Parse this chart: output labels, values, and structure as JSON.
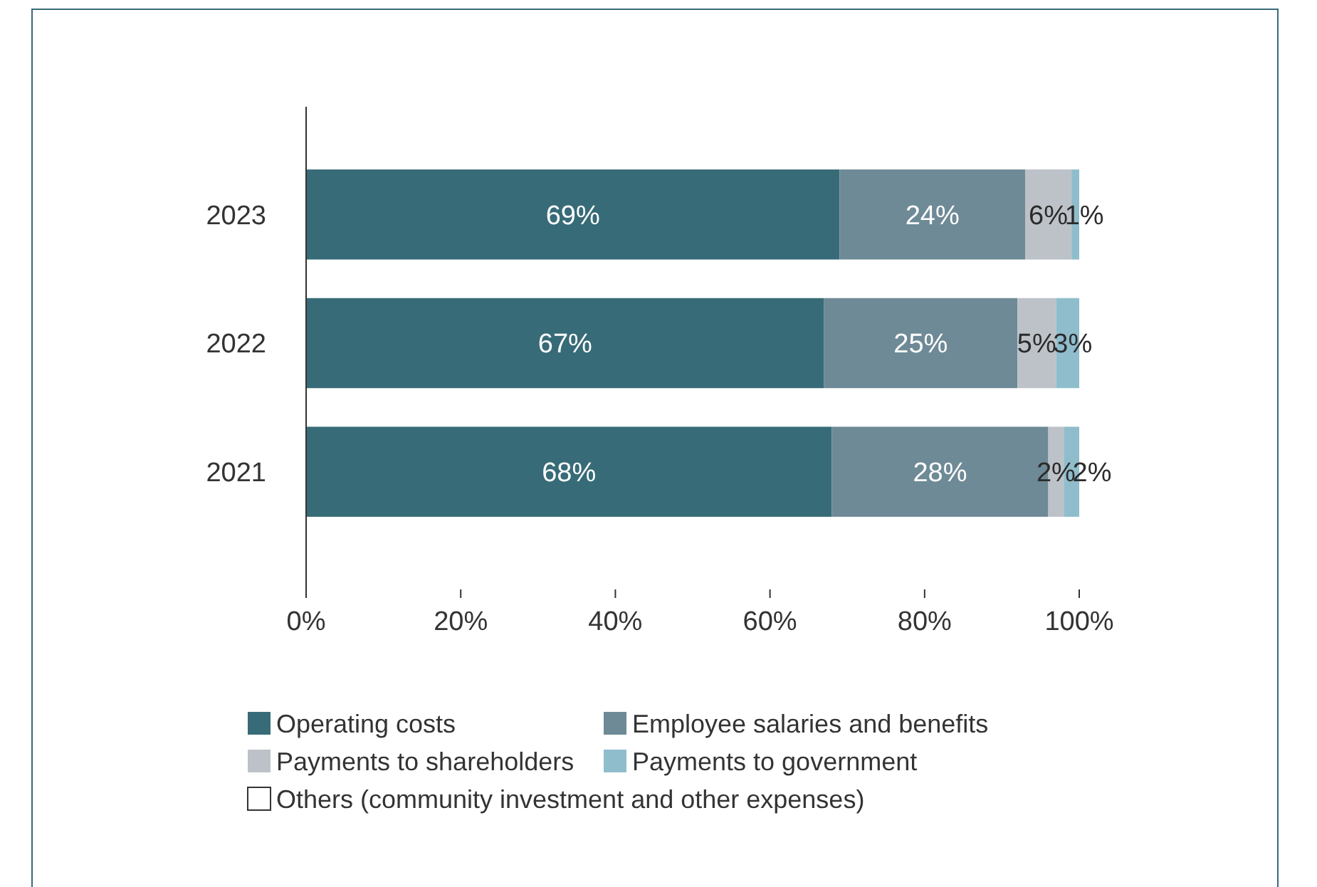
{
  "chart_data": {
    "type": "bar",
    "orientation": "horizontal",
    "stacked": true,
    "categories": [
      "2023",
      "2022",
      "2021"
    ],
    "series": [
      {
        "name": "Operating costs",
        "color": "#376b77",
        "values": [
          69,
          67,
          68
        ],
        "value_labels": [
          "69%",
          "67%",
          "68%"
        ]
      },
      {
        "name": "Employee salaries and benefits",
        "color": "#6e8a96",
        "values": [
          24,
          25,
          28
        ],
        "value_labels": [
          "24%",
          "25%",
          "28%"
        ]
      },
      {
        "name": "Payments to shareholders",
        "color": "#bcc2c7",
        "values": [
          6,
          5,
          2
        ],
        "value_labels": [
          "6%",
          "5%",
          "2%"
        ]
      },
      {
        "name": "Payments to government",
        "color": "#8fbdcc",
        "values": [
          1,
          3,
          2
        ],
        "value_labels": [
          "1%",
          "3%",
          "2%"
        ]
      },
      {
        "name": "Others (community investment and other expenses)",
        "color": "#ffffff",
        "values": [
          null,
          null,
          null
        ]
      }
    ],
    "xlim": [
      0,
      100
    ],
    "xticks": [
      {
        "value": 0,
        "label": "0%"
      },
      {
        "value": 20,
        "label": "20%"
      },
      {
        "value": 40,
        "label": "40%"
      },
      {
        "value": 60,
        "label": "60%"
      },
      {
        "value": 80,
        "label": "80%"
      },
      {
        "value": 100,
        "label": "100%"
      }
    ],
    "grid": false,
    "legend": "bottom"
  }
}
